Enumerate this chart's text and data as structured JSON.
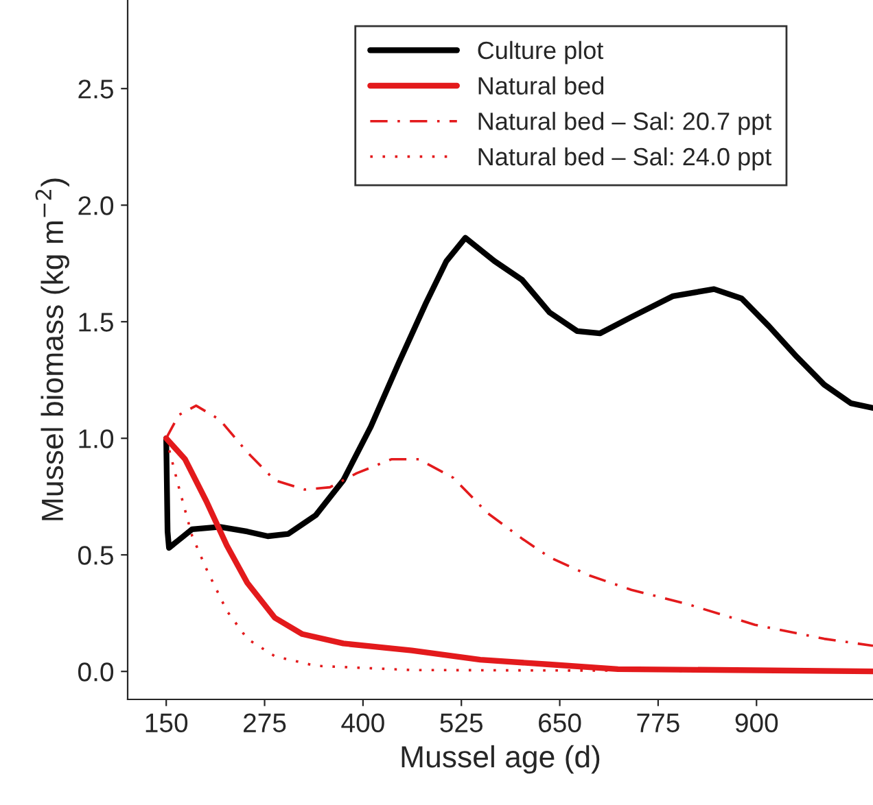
{
  "chart_data": {
    "type": "line",
    "xlabel": "Mussel age (d)",
    "ylabel": "Mussel biomass (kg m$^{−2}$)",
    "xlim": [
      101,
      1048
    ],
    "ylim": [
      -0.12,
      2.88
    ],
    "xticks": [
      150,
      275,
      400,
      525,
      650,
      775,
      900
    ],
    "yticks": [
      {
        "value": 0,
        "label": "0.0"
      },
      {
        "value": 0.5,
        "label": "0.5"
      },
      {
        "value": 1,
        "label": "1.0"
      },
      {
        "value": 1.5,
        "label": "1.5"
      },
      {
        "value": 2,
        "label": "2.0"
      },
      {
        "value": 2.5,
        "label": "2.5"
      }
    ],
    "grid": false,
    "legend": "top right",
    "marker": "none",
    "series": [
      {
        "name": "Culture plot",
        "color": "#000000",
        "line_style": "solid",
        "x": [
          150,
          151.7,
          153.5,
          183,
          218,
          253,
          279,
          305,
          340,
          375,
          410,
          445,
          480,
          506,
          530,
          567,
          602,
          637,
          672,
          701,
          741,
          794,
          846,
          881,
          916,
          951,
          986,
          1020,
          1048
        ],
        "values": [
          1.0,
          0.6,
          0.53,
          0.61,
          0.62,
          0.6,
          0.58,
          0.59,
          0.67,
          0.82,
          1.05,
          1.32,
          1.58,
          1.76,
          1.86,
          1.76,
          1.68,
          1.54,
          1.46,
          1.45,
          1.52,
          1.61,
          1.64,
          1.6,
          1.48,
          1.35,
          1.23,
          1.15,
          1.13
        ]
      },
      {
        "name": "Natural bed",
        "color": "#e31a1c",
        "line_style": "solid",
        "x": [
          150,
          174,
          201,
          227,
          253,
          288,
          323,
          375,
          462,
          549,
          637,
          724,
          898,
          1048
        ],
        "values": [
          1.0,
          0.91,
          0.73,
          0.54,
          0.38,
          0.23,
          0.16,
          0.12,
          0.09,
          0.05,
          0.03,
          0.01,
          0.005,
          0.0
        ]
      },
      {
        "name": "Natural bed – Sal: 20.7 ppt",
        "color": "#e31a1c",
        "line_style": "dashdot",
        "x": [
          150,
          166,
          188,
          218,
          253,
          288,
          326,
          358,
          392,
          436,
          471,
          515,
          558,
          602,
          637,
          689,
          741,
          811,
          898,
          986,
          1048
        ],
        "values": [
          1.0,
          1.1,
          1.14,
          1.08,
          0.94,
          0.82,
          0.78,
          0.79,
          0.85,
          0.91,
          0.91,
          0.83,
          0.68,
          0.57,
          0.49,
          0.41,
          0.35,
          0.29,
          0.2,
          0.14,
          0.11
        ]
      },
      {
        "name": "Natural bed – Sal: 24.0 ppt",
        "color": "#e31a1c",
        "line_style": "dotted",
        "x": [
          150,
          166,
          183,
          201,
          227,
          253,
          288,
          340,
          462,
          1048
        ],
        "values": [
          1.0,
          0.79,
          0.58,
          0.44,
          0.26,
          0.14,
          0.065,
          0.024,
          0.006,
          0.0
        ]
      }
    ]
  }
}
